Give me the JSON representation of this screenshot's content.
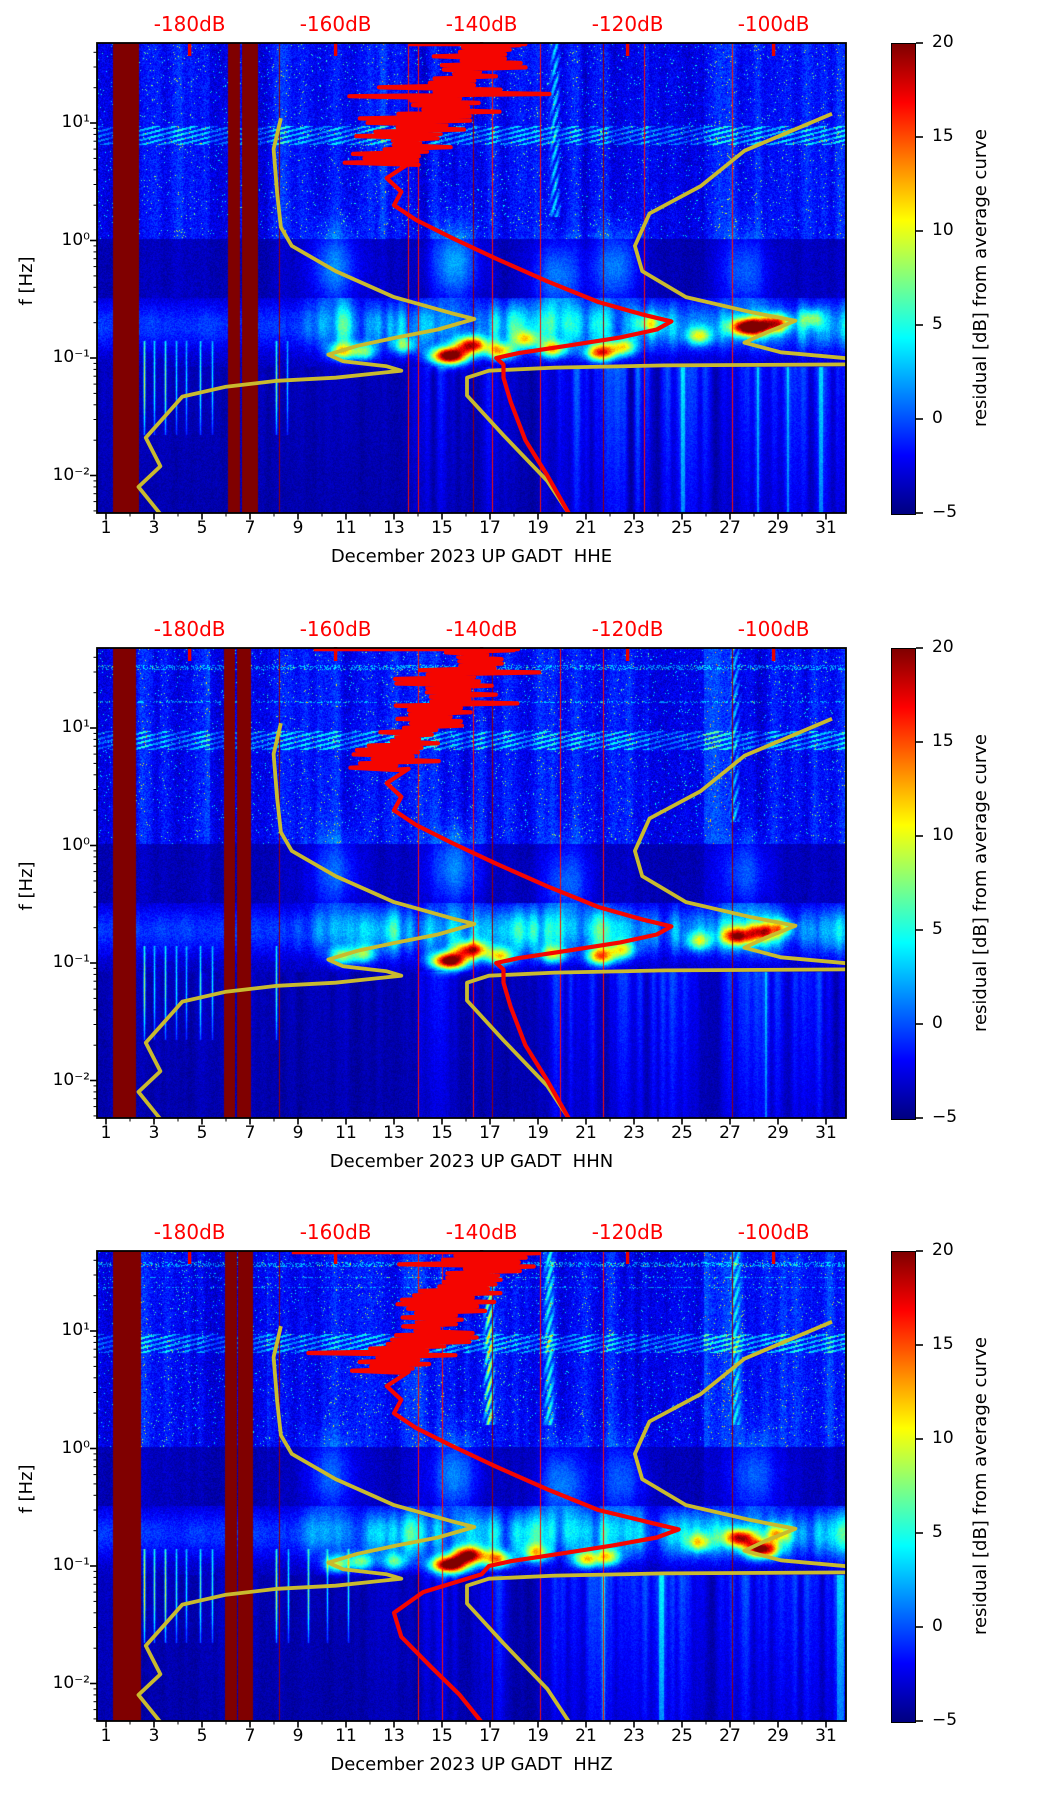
{
  "figure": {
    "kind": "three-panel seismic spectrogram figure",
    "station_line": "UP GADT",
    "month": "December 2023",
    "background": "#ffffff"
  },
  "colors": {
    "top_axis_text": "#ff0000",
    "red_curve": "#f50500",
    "yellow_curve": "#c9ba2e",
    "hairline": "#a00000",
    "saturated_band": "#800000",
    "axis": "#000000"
  },
  "top_axis": {
    "tick_labels": [
      "-180dB",
      "-160dB",
      "-140dB",
      "-120dB",
      "-100dB"
    ],
    "values_db": [
      -180,
      -160,
      -140,
      -120,
      -100
    ]
  },
  "x_axis": {
    "tick_labels": [
      "1",
      "3",
      "5",
      "7",
      "9",
      "11",
      "13",
      "15",
      "17",
      "19",
      "21",
      "23",
      "25",
      "27",
      "29",
      "31"
    ],
    "tick_days": [
      1,
      3,
      5,
      7,
      9,
      11,
      13,
      15,
      17,
      19,
      21,
      23,
      25,
      27,
      29,
      31
    ],
    "minor_tick_days": [
      2,
      4,
      6,
      8,
      10,
      12,
      14,
      16,
      18,
      20,
      22,
      24,
      26,
      28,
      30
    ]
  },
  "y_axis": {
    "label": "f [Hz]",
    "tick_labels": [
      "10¹",
      "10⁰",
      "10⁻¹",
      "10⁻²"
    ],
    "tick_values": [
      10,
      1,
      0.1,
      0.01
    ],
    "scale": "log"
  },
  "colorbar": {
    "label": "residual [dB] from average curve",
    "tick_labels": [
      "20",
      "15",
      "10",
      "5",
      "0",
      "−5"
    ],
    "tick_values": [
      20,
      15,
      10,
      5,
      0,
      -5
    ],
    "vmin": -5,
    "vmax": 20,
    "colormap": "jet"
  },
  "panels": [
    {
      "channel": "HHE",
      "xlabel": "December 2023 UP GADT  HHE"
    },
    {
      "channel": "HHN",
      "xlabel": "December 2023 UP GADT  HHN"
    },
    {
      "channel": "HHZ",
      "xlabel": "December 2023 UP GADT  HHZ"
    }
  ],
  "chart_data": {
    "type": "heatmap",
    "subtype": "spectrogram of PSD residual vs time and frequency",
    "panels": [
      "HHE",
      "HHN",
      "HHZ"
    ],
    "x": {
      "unit": "day of December 2023",
      "range_days": [
        0.7,
        32
      ],
      "ticks": [
        1,
        3,
        5,
        7,
        9,
        11,
        13,
        15,
        17,
        19,
        21,
        23,
        25,
        27,
        29,
        31
      ]
    },
    "y": {
      "label": "f [Hz]",
      "scale": "log",
      "range_hz": [
        0.0047,
        48
      ],
      "ticks": [
        10,
        1,
        0.1,
        0.01
      ]
    },
    "color": {
      "label": "residual [dB] from average curve",
      "range_db": [
        -5,
        20
      ],
      "colormap": "jet"
    },
    "top_axis": {
      "purpose": "PSD level scale for overlay curves",
      "ticks_db": [
        -180,
        -160,
        -140,
        -120,
        -100
      ]
    },
    "overlays": {
      "red_curve_name": "average PSD curve",
      "yellow_curve_name": "reference noise curves",
      "red_main_db_hz": {
        "HHE_HHN": [
          [
            -150,
            4.5
          ],
          [
            -153,
            3.4
          ],
          [
            -151,
            2.6
          ],
          [
            -152,
            2.0
          ],
          [
            -149,
            1.5
          ],
          [
            -144,
            1.05
          ],
          [
            -138,
            0.7
          ],
          [
            -131,
            0.45
          ],
          [
            -124,
            0.3
          ],
          [
            -118,
            0.235
          ],
          [
            -114,
            0.205
          ],
          [
            -116,
            0.175
          ],
          [
            -121,
            0.15
          ],
          [
            -128,
            0.128
          ],
          [
            -135,
            0.11
          ],
          [
            -138,
            0.1
          ],
          [
            -137,
            0.088
          ],
          [
            -137,
            0.068
          ],
          [
            -136,
            0.042
          ],
          [
            -134,
            0.02
          ],
          [
            -131,
            0.01
          ],
          [
            -128,
            0.0047
          ]
        ],
        "HHZ": [
          [
            -150,
            4.5
          ],
          [
            -153,
            3.4
          ],
          [
            -151,
            2.6
          ],
          [
            -152,
            2.0
          ],
          [
            -149,
            1.5
          ],
          [
            -144,
            1.05
          ],
          [
            -138,
            0.7
          ],
          [
            -131,
            0.45
          ],
          [
            -124,
            0.3
          ],
          [
            -117,
            0.235
          ],
          [
            -113,
            0.205
          ],
          [
            -116,
            0.175
          ],
          [
            -122,
            0.15
          ],
          [
            -129,
            0.128
          ],
          [
            -136,
            0.11
          ],
          [
            -139,
            0.1
          ],
          [
            -140,
            0.085
          ],
          [
            -148,
            0.06
          ],
          [
            -152,
            0.04
          ],
          [
            -151,
            0.025
          ],
          [
            -147,
            0.014
          ],
          [
            -143,
            0.008
          ],
          [
            -140,
            0.0047
          ]
        ]
      },
      "yellow_a_db_hz": [
        [
          -167.5,
          11
        ],
        [
          -168.5,
          6
        ],
        [
          -168,
          2.5
        ],
        [
          -167.5,
          1.3
        ],
        [
          -166,
          0.9
        ],
        [
          -160,
          0.55
        ],
        [
          -152,
          0.33
        ],
        [
          -144,
          0.24
        ],
        [
          -141,
          0.215
        ],
        [
          -146,
          0.175
        ],
        [
          -152,
          0.148
        ],
        [
          -157,
          0.127
        ],
        [
          -161,
          0.107
        ],
        [
          -159,
          0.094
        ],
        [
          -153,
          0.085
        ],
        [
          -151,
          0.078
        ],
        [
          -160,
          0.068
        ],
        [
          -168,
          0.064
        ],
        [
          -175,
          0.057
        ],
        [
          -181,
          0.047
        ],
        [
          -183,
          0.034
        ],
        [
          -186,
          0.021
        ],
        [
          -184,
          0.012
        ],
        [
          -187,
          0.008
        ],
        [
          -184,
          0.0047
        ]
      ],
      "yellow_b_db_hz": [
        [
          -92,
          12
        ],
        [
          -104,
          5.8
        ],
        [
          -110,
          2.9
        ],
        [
          -117,
          1.7
        ],
        [
          -119,
          0.9
        ],
        [
          -118,
          0.55
        ],
        [
          -112,
          0.33
        ],
        [
          -103,
          0.245
        ],
        [
          -97,
          0.208
        ],
        [
          -101,
          0.165
        ],
        [
          -104,
          0.135
        ],
        [
          -99,
          0.112
        ],
        [
          -88,
          0.097
        ],
        [
          -88,
          0.0885
        ],
        [
          -115,
          0.0865
        ],
        [
          -130,
          0.083
        ],
        [
          -139,
          0.078
        ],
        [
          -142,
          0.068
        ],
        [
          -142,
          0.048
        ],
        [
          -137,
          0.022
        ],
        [
          -131,
          0.009
        ],
        [
          -128,
          0.0047
        ]
      ],
      "red_squiggle": {
        "HHE": {
          "c0": -138.5,
          "c1": -153,
          "top_line_db": [
            -150,
            -134
          ],
          "seed": 7
        },
        "HHN": {
          "c0": -139.5,
          "c1": -153.5,
          "top_line_db": [
            -163,
            -135
          ],
          "seed": 8
        },
        "HHZ": {
          "c0": -137.5,
          "c1": -152.5,
          "top_line_db": [
            -166,
            -133
          ],
          "seed": 9
        }
      }
    },
    "estimated_features": {
      "note": "approximate, read from pixels",
      "saturated_day_ranges": {
        "HHE": [
          [
            1.3,
            2.35
          ],
          [
            6.1,
            6.55
          ],
          [
            6.65,
            7.3
          ]
        ],
        "HHN": [
          [
            1.3,
            2.2
          ],
          [
            5.9,
            6.35
          ],
          [
            6.45,
            7.0
          ]
        ],
        "HHZ": [
          [
            1.3,
            2.4
          ],
          [
            5.95,
            6.4
          ],
          [
            6.5,
            7.1
          ]
        ]
      },
      "hairline_days": {
        "HHE": [
          8.2,
          13.6,
          14.0,
          16.3,
          17.1,
          19.1,
          21.7,
          23.4,
          27.1
        ],
        "HHN": [
          8.2,
          14.0,
          16.3,
          17.1,
          19.9,
          21.7,
          27.1
        ],
        "HHZ": [
          8.2,
          14.0,
          15.0,
          17.1,
          19.1,
          21.7,
          27.1
        ]
      },
      "microseism_hotspots_day_hz_amp": {
        "HHE": [
          [
            10.8,
            0.115,
            12
          ],
          [
            11.7,
            0.115,
            10
          ],
          [
            13.4,
            0.13,
            8
          ],
          [
            15.3,
            0.105,
            26
          ],
          [
            16.2,
            0.13,
            20
          ],
          [
            17.4,
            0.115,
            14
          ],
          [
            18.5,
            0.145,
            10
          ],
          [
            19.6,
            0.12,
            13
          ],
          [
            21.6,
            0.112,
            18
          ],
          [
            22.5,
            0.125,
            12
          ],
          [
            23.6,
            0.2,
            8
          ],
          [
            25.7,
            0.155,
            10
          ],
          [
            27.8,
            0.185,
            25
          ],
          [
            28.9,
            0.2,
            15
          ],
          [
            30.4,
            0.22,
            7
          ]
        ],
        "HHN": [
          [
            10.8,
            0.115,
            10
          ],
          [
            11.7,
            0.12,
            9
          ],
          [
            15.3,
            0.105,
            25
          ],
          [
            16.2,
            0.13,
            19
          ],
          [
            17.4,
            0.115,
            13
          ],
          [
            19.6,
            0.12,
            11
          ],
          [
            21.6,
            0.115,
            15
          ],
          [
            22.5,
            0.13,
            10
          ],
          [
            25.7,
            0.155,
            9
          ],
          [
            27.3,
            0.17,
            17
          ],
          [
            28.3,
            0.185,
            13
          ],
          [
            29.1,
            0.2,
            9
          ]
        ],
        "HHZ": [
          [
            10.6,
            0.105,
            11
          ],
          [
            11.6,
            0.11,
            10
          ],
          [
            13.0,
            0.11,
            9
          ],
          [
            15.3,
            0.103,
            26
          ],
          [
            16.1,
            0.125,
            21
          ],
          [
            17.3,
            0.115,
            15
          ],
          [
            18.9,
            0.13,
            11
          ],
          [
            21.0,
            0.115,
            13
          ],
          [
            21.9,
            0.12,
            11
          ],
          [
            25.7,
            0.16,
            9
          ],
          [
            27.4,
            0.175,
            18
          ],
          [
            28.3,
            0.14,
            22
          ],
          [
            29.0,
            0.19,
            11
          ]
        ],
        "all_panels_band_hz": [
          0.085,
          0.33
        ]
      },
      "needle_spike_days_amp": {
        "HHE": [
          [
            2.6,
            13
          ],
          [
            3.0,
            9
          ],
          [
            3.45,
            11
          ],
          [
            3.9,
            8
          ],
          [
            4.35,
            7
          ],
          [
            4.9,
            9
          ],
          [
            5.4,
            8
          ],
          [
            6.2,
            15
          ],
          [
            8.1,
            11
          ],
          [
            8.55,
            7
          ]
        ],
        "HHN": [
          [
            2.6,
            12
          ],
          [
            3.0,
            8
          ],
          [
            3.45,
            10
          ],
          [
            3.9,
            8
          ],
          [
            4.35,
            7
          ],
          [
            4.9,
            9
          ],
          [
            5.4,
            8
          ],
          [
            6.2,
            14
          ],
          [
            8.1,
            10
          ]
        ],
        "HHZ": [
          [
            2.6,
            15
          ],
          [
            3.0,
            11
          ],
          [
            3.45,
            13
          ],
          [
            3.9,
            9
          ],
          [
            4.35,
            8
          ],
          [
            4.9,
            10
          ],
          [
            5.4,
            9
          ],
          [
            6.2,
            17
          ],
          [
            8.1,
            13
          ],
          [
            8.6,
            9
          ],
          [
            9.4,
            11
          ],
          [
            10.2,
            8
          ],
          [
            11.1,
            9
          ]
        ]
      },
      "storm_windows_day_ranges_strength": {
        "HHE": [
          [
            13.9,
            15.6,
            0.75
          ],
          [
            16.6,
            17.6,
            0.65
          ],
          [
            19.3,
            26.0,
            1.0
          ],
          [
            26.7,
            32,
            0.9
          ]
        ],
        "HHN": [
          [
            13.9,
            15.6,
            0.6
          ],
          [
            19.3,
            25.5,
            0.85
          ],
          [
            26.7,
            32,
            0.85
          ]
        ],
        "HHZ": [
          [
            13.9,
            15.6,
            0.55
          ],
          [
            16.6,
            17.8,
            0.7
          ],
          [
            19.3,
            25.8,
            1.0
          ],
          [
            26.7,
            32,
            0.9
          ]
        ]
      },
      "mid_band_clouds_day_hz_amp": {
        "HHE": [
          [
            10.5,
            0.6,
            5
          ],
          [
            15.5,
            0.65,
            6
          ],
          [
            19.8,
            0.5,
            5
          ],
          [
            22.2,
            0.6,
            5
          ],
          [
            27.6,
            0.55,
            4
          ]
        ],
        "HHN": [
          [
            10.5,
            0.6,
            4
          ],
          [
            15.5,
            0.65,
            5
          ],
          [
            20.2,
            0.5,
            4
          ],
          [
            27.6,
            0.6,
            4
          ]
        ],
        "HHZ": [
          [
            10.3,
            0.6,
            4
          ],
          [
            15.5,
            0.6,
            5
          ],
          [
            20.0,
            0.5,
            5
          ],
          [
            22.5,
            0.55,
            4
          ],
          [
            28.0,
            0.6,
            4
          ]
        ]
      },
      "bright_upper_columns_day_amp": {
        "HHE": [
          [
            19.7,
            7
          ]
        ],
        "HHN": [
          [
            27.2,
            6
          ]
        ],
        "HHZ": [
          [
            16.95,
            12
          ],
          [
            19.45,
            7
          ],
          [
            27.2,
            6
          ]
        ]
      }
    }
  }
}
